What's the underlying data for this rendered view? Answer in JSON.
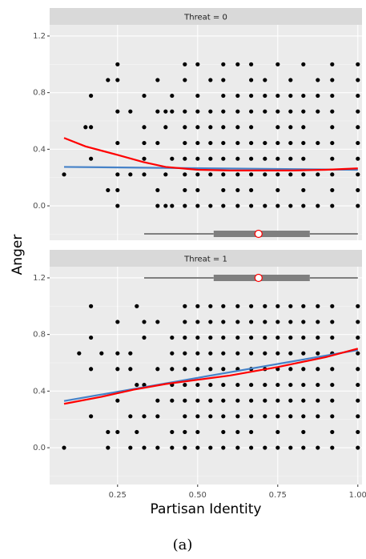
{
  "caption": "(a)",
  "x_label": "Partisan Identity",
  "y_label": "Anger",
  "chart_data": [
    {
      "type": "scatter",
      "title": "Threat = 0",
      "grid": true,
      "point_color": "#000000",
      "xlim": [
        0.038,
        1.013
      ],
      "xticks": [
        0.25,
        {
          "value": 0.5,
          "label": "0.50"
        },
        0.75,
        {
          "value": 1.0,
          "label": "1.00"
        }
      ],
      "ylim": [
        -0.243,
        1.279
      ],
      "yticks": [
        {
          "value": 0,
          "label": "0.0"
        },
        0.4,
        0.8,
        1.2
      ],
      "y_minor_ticks": [
        -0.2,
        0.2,
        0.6,
        1.0
      ],
      "columns": [
        {
          "x": 0.083,
          "values": [
            0.222
          ]
        },
        {
          "x": 0.15,
          "values": [
            0.556
          ]
        },
        {
          "x": 0.167,
          "values": [
            0.556,
            0.778,
            0.333
          ]
        },
        {
          "x": 0.22,
          "values": [
            0.111,
            0.889
          ]
        },
        {
          "x": 0.25,
          "values": [
            1.0,
            0.889,
            0.667,
            0.444,
            0.222,
            0.111,
            0.0
          ]
        },
        {
          "x": 0.29,
          "values": [
            0.667,
            0.222
          ]
        },
        {
          "x": 0.333,
          "values": [
            0.778,
            0.556,
            0.444,
            0.333,
            0.222
          ]
        },
        {
          "x": 0.375,
          "values": [
            0.889,
            0.667,
            0.444,
            0.111,
            0.0
          ]
        },
        {
          "x": 0.4,
          "values": [
            0.667,
            0.556,
            0.222,
            0.0
          ]
        },
        {
          "x": 0.42,
          "values": [
            0.778,
            0.667,
            0.333,
            0.0
          ]
        },
        {
          "x": 0.46,
          "values": [
            1.0,
            0.889,
            0.667,
            0.556,
            0.444,
            0.333,
            0.222,
            0.111,
            0.0
          ]
        },
        {
          "x": 0.5,
          "values": [
            1.0,
            0.778,
            0.667,
            0.556,
            0.444,
            0.333,
            0.222,
            0.111,
            0.0
          ]
        },
        {
          "x": 0.54,
          "values": [
            0.889,
            0.667,
            0.556,
            0.444,
            0.333,
            0.222,
            0.0
          ]
        },
        {
          "x": 0.58,
          "values": [
            1.0,
            0.889,
            0.778,
            0.667,
            0.556,
            0.444,
            0.333,
            0.222,
            0.111,
            0.0
          ]
        },
        {
          "x": 0.625,
          "values": [
            1.0,
            0.778,
            0.667,
            0.556,
            0.444,
            0.333,
            0.222,
            0.111,
            0.0
          ]
        },
        {
          "x": 0.667,
          "values": [
            1.0,
            0.889,
            0.778,
            0.667,
            0.556,
            0.444,
            0.333,
            0.222,
            0.111,
            0.0
          ]
        },
        {
          "x": 0.71,
          "values": [
            0.889,
            0.778,
            0.667,
            0.444,
            0.333,
            0.222,
            0.0
          ]
        },
        {
          "x": 0.75,
          "values": [
            1.0,
            0.778,
            0.667,
            0.556,
            0.444,
            0.333,
            0.222,
            0.111,
            0.0
          ]
        },
        {
          "x": 0.79,
          "values": [
            0.889,
            0.778,
            0.667,
            0.556,
            0.444,
            0.333,
            0.222,
            0.0
          ]
        },
        {
          "x": 0.83,
          "values": [
            1.0,
            0.778,
            0.667,
            0.556,
            0.444,
            0.333,
            0.222,
            0.111,
            0.0
          ]
        },
        {
          "x": 0.875,
          "values": [
            0.889,
            0.778,
            0.667,
            0.444,
            0.222,
            0.0
          ]
        },
        {
          "x": 0.92,
          "values": [
            1.0,
            0.889,
            0.778,
            0.667,
            0.556,
            0.444,
            0.333,
            0.222,
            0.111,
            0.0
          ]
        },
        {
          "x": 1.0,
          "values": [
            1.0,
            0.889,
            0.778,
            0.667,
            0.556,
            0.444,
            0.333,
            0.222,
            0.111,
            0.0
          ]
        }
      ],
      "fits": [
        {
          "color": "#4682c8",
          "x": [
            0.083,
            1.0
          ],
          "values": [
            0.275,
            0.255
          ]
        },
        {
          "color": "#ff0000",
          "x": [
            0.083,
            0.15,
            0.25,
            0.33,
            0.4,
            0.5,
            0.6,
            0.7,
            0.8,
            0.9,
            1.0
          ],
          "values": [
            0.48,
            0.42,
            0.36,
            0.31,
            0.275,
            0.255,
            0.25,
            0.25,
            0.25,
            0.255,
            0.265
          ]
        }
      ],
      "boxplot": {
        "min": 0.333,
        "q1": 0.55,
        "median": 0.69,
        "q3": 0.85,
        "max": 1.0,
        "mean": 0.69
      }
    },
    {
      "type": "scatter",
      "title": "Threat = 1",
      "grid": true,
      "point_color": "#000000",
      "xlim": [
        0.038,
        1.013
      ],
      "xticks": [
        0.25,
        {
          "value": 0.5,
          "label": "0.50"
        },
        0.75,
        {
          "value": 1.0,
          "label": "1.00"
        }
      ],
      "ylim": [
        -0.26,
        1.279
      ],
      "yticks": [
        {
          "value": 0,
          "label": "0.0"
        },
        0.4,
        0.8,
        1.2
      ],
      "y_minor_ticks": [
        -0.2,
        0.2,
        0.6,
        1.0
      ],
      "columns": [
        {
          "x": 0.083,
          "values": [
            0.0
          ]
        },
        {
          "x": 0.13,
          "values": [
            0.667
          ]
        },
        {
          "x": 0.167,
          "values": [
            1.0,
            0.778,
            0.556,
            0.222
          ]
        },
        {
          "x": 0.2,
          "values": [
            0.667
          ]
        },
        {
          "x": 0.22,
          "values": [
            0.111,
            0.0
          ]
        },
        {
          "x": 0.25,
          "values": [
            0.889,
            0.667,
            0.556,
            0.333,
            0.111
          ]
        },
        {
          "x": 0.29,
          "values": [
            0.667,
            0.556,
            0.222,
            0.0
          ]
        },
        {
          "x": 0.31,
          "values": [
            1.0,
            0.444,
            0.111
          ]
        },
        {
          "x": 0.333,
          "values": [
            0.889,
            0.778,
            0.444,
            0.222,
            0.0
          ]
        },
        {
          "x": 0.375,
          "values": [
            0.889,
            0.556,
            0.333,
            0.222,
            0.0
          ]
        },
        {
          "x": 0.42,
          "values": [
            0.778,
            0.667,
            0.556,
            0.444,
            0.333,
            0.111,
            0.0
          ]
        },
        {
          "x": 0.46,
          "values": [
            1.0,
            0.889,
            0.778,
            0.667,
            0.556,
            0.444,
            0.333,
            0.222,
            0.111,
            0.0
          ]
        },
        {
          "x": 0.5,
          "values": [
            1.0,
            0.889,
            0.778,
            0.667,
            0.556,
            0.444,
            0.333,
            0.222,
            0.111,
            0.0
          ]
        },
        {
          "x": 0.54,
          "values": [
            1.0,
            0.889,
            0.778,
            0.667,
            0.556,
            0.444,
            0.333,
            0.222,
            0.0
          ]
        },
        {
          "x": 0.58,
          "values": [
            1.0,
            0.889,
            0.778,
            0.667,
            0.556,
            0.444,
            0.333,
            0.222,
            0.111,
            0.0
          ]
        },
        {
          "x": 0.625,
          "values": [
            1.0,
            0.889,
            0.778,
            0.667,
            0.556,
            0.444,
            0.333,
            0.222,
            0.111,
            0.0
          ]
        },
        {
          "x": 0.667,
          "values": [
            1.0,
            0.889,
            0.778,
            0.667,
            0.556,
            0.444,
            0.333,
            0.222,
            0.111,
            0.0
          ]
        },
        {
          "x": 0.71,
          "values": [
            1.0,
            0.889,
            0.778,
            0.667,
            0.556,
            0.444,
            0.333,
            0.222,
            0.0
          ]
        },
        {
          "x": 0.75,
          "values": [
            1.0,
            0.889,
            0.778,
            0.667,
            0.556,
            0.444,
            0.333,
            0.222,
            0.111,
            0.0
          ]
        },
        {
          "x": 0.79,
          "values": [
            1.0,
            0.889,
            0.778,
            0.667,
            0.556,
            0.444,
            0.333,
            0.222,
            0.0
          ]
        },
        {
          "x": 0.83,
          "values": [
            1.0,
            0.889,
            0.778,
            0.667,
            0.556,
            0.444,
            0.333,
            0.222,
            0.111,
            0.0
          ]
        },
        {
          "x": 0.875,
          "values": [
            1.0,
            0.889,
            0.778,
            0.667,
            0.556,
            0.444,
            0.333,
            0.222,
            0.0
          ]
        },
        {
          "x": 0.92,
          "values": [
            1.0,
            0.889,
            0.778,
            0.667,
            0.556,
            0.444,
            0.333,
            0.222,
            0.111,
            0.0
          ]
        },
        {
          "x": 1.0,
          "values": [
            1.0,
            0.889,
            0.778,
            0.667,
            0.556,
            0.444,
            0.333,
            0.222,
            0.111,
            0.0
          ]
        }
      ],
      "fits": [
        {
          "color": "#4682c8",
          "x": [
            0.083,
            1.0
          ],
          "values": [
            0.33,
            0.69
          ]
        },
        {
          "color": "#ff0000",
          "x": [
            0.083,
            0.2,
            0.3,
            0.4,
            0.5,
            0.6,
            0.75,
            0.9,
            1.0
          ],
          "values": [
            0.31,
            0.36,
            0.41,
            0.45,
            0.48,
            0.51,
            0.57,
            0.64,
            0.7
          ]
        }
      ],
      "boxplot": {
        "min": 0.333,
        "q1": 0.55,
        "median": 0.69,
        "q3": 0.85,
        "max": 1.0,
        "mean": 0.69
      }
    }
  ]
}
